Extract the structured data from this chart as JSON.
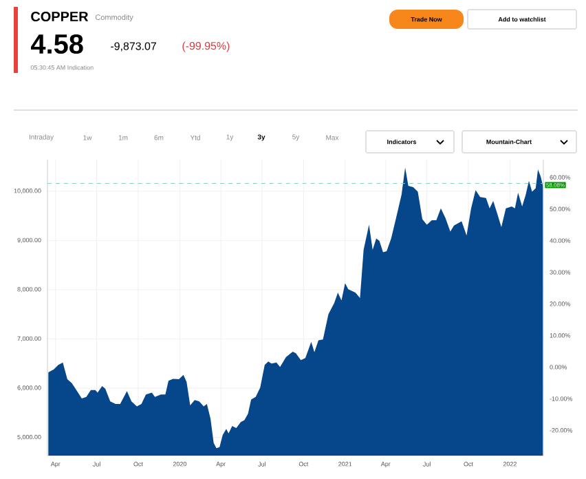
{
  "chart_data": {
    "type": "area",
    "title": "COPPER",
    "subtitle": "Commodity",
    "annotations": [
      "4.58",
      "-9,873.07",
      "(-99.95%)",
      "05:30:45 AM Indication",
      "Trade Now",
      "Add to watchlist",
      "Intraday",
      "1w",
      "1m",
      "6m",
      "Ytd",
      "1y",
      "3y",
      "5y",
      "Max",
      "Indicators",
      "Mountain-Chart"
    ],
    "x": [
      "2019-03-16",
      "2019-03-28",
      "2019-04-07",
      "2019-04-17",
      "2019-04-27",
      "2019-05-07",
      "2019-05-17",
      "2019-05-29",
      "2019-06-08",
      "2019-06-18",
      "2019-06-28",
      "2019-07-03",
      "2019-07-13",
      "2019-07-20",
      "2019-07-31",
      "2019-08-12",
      "2019-08-22",
      "2019-09-06",
      "2019-09-16",
      "2019-09-28",
      "2019-10-08",
      "2019-10-18",
      "2019-10-31",
      "2019-11-07",
      "2019-11-20",
      "2019-11-30",
      "2019-12-07",
      "2019-12-17",
      "2019-12-30",
      "2020-01-09",
      "2020-01-16",
      "2020-01-24",
      "2020-02-03",
      "2020-02-13",
      "2020-02-23",
      "2020-03-01",
      "2020-03-09",
      "2020-03-16",
      "2020-03-22",
      "2020-03-29",
      "2020-04-05",
      "2020-04-13",
      "2020-04-18",
      "2020-04-26",
      "2020-05-05",
      "2020-05-15",
      "2020-05-23",
      "2020-05-31",
      "2020-06-07",
      "2020-06-17",
      "2020-06-27",
      "2020-07-07",
      "2020-07-15",
      "2020-07-22",
      "2020-08-02",
      "2020-08-10",
      "2020-08-23",
      "2020-09-07",
      "2020-09-14",
      "2020-09-25",
      "2020-10-05",
      "2020-10-18",
      "2020-10-25",
      "2020-11-03",
      "2020-11-13",
      "2020-11-25",
      "2020-12-08",
      "2020-12-16",
      "2020-12-24",
      "2021-01-01",
      "2021-01-08",
      "2021-01-24",
      "2021-02-03",
      "2021-02-11",
      "2021-02-23",
      "2021-03-03",
      "2021-03-11",
      "2021-03-18",
      "2021-03-26",
      "2021-04-03",
      "2021-04-13",
      "2021-04-24",
      "2021-05-06",
      "2021-05-14",
      "2021-05-21",
      "2021-06-01",
      "2021-06-11",
      "2021-06-21",
      "2021-07-01",
      "2021-07-12",
      "2021-07-22",
      "2021-08-01",
      "2021-08-11",
      "2021-08-22",
      "2021-08-30",
      "2021-09-16",
      "2021-09-27",
      "2021-10-07",
      "2021-10-17",
      "2021-10-27",
      "2021-11-09",
      "2021-11-17",
      "2021-11-25",
      "2021-12-05",
      "2021-12-13",
      "2021-12-23",
      "2022-01-05",
      "2022-01-12",
      "2022-01-19",
      "2022-01-28",
      "2022-02-05",
      "2022-02-12",
      "2022-02-19",
      "2022-02-27",
      "2022-03-04",
      "2022-03-10",
      "2022-03-15"
    ],
    "series": [
      {
        "color": "#06468a",
        "values": [
          6320,
          6380,
          6470,
          6520,
          6180,
          6100,
          5960,
          5790,
          5820,
          5960,
          5960,
          5910,
          6040,
          5990,
          5730,
          5680,
          5680,
          5940,
          5730,
          5630,
          5680,
          5870,
          5910,
          5820,
          5870,
          5870,
          6150,
          6190,
          6180,
          6270,
          6130,
          5650,
          5760,
          5730,
          5630,
          5680,
          5380,
          4890,
          4780,
          4800,
          5050,
          5170,
          5080,
          5230,
          5190,
          5310,
          5350,
          5480,
          5770,
          5820,
          6010,
          6470,
          6540,
          6500,
          6520,
          6430,
          6630,
          6740,
          6710,
          6570,
          6610,
          6940,
          6730,
          6970,
          6990,
          7500,
          7730,
          7940,
          7780,
          8130,
          8010,
          7940,
          7830,
          8810,
          9320,
          8810,
          9040,
          8990,
          8760,
          8780,
          9040,
          9460,
          9930,
          10480,
          10110,
          10080,
          9990,
          9430,
          9320,
          9410,
          9410,
          9650,
          9460,
          9180,
          9300,
          9390,
          9100,
          9650,
          10020,
          9880,
          9860,
          9650,
          9800,
          9510,
          9270,
          9650,
          9690,
          9650,
          9970,
          9690,
          9930,
          10210,
          9990,
          10060,
          10440,
          10300,
          10110
        ]
      }
    ],
    "xlim": [
      "2019-03-14",
      "2022-03-16"
    ],
    "xticks": [
      {
        "value": "2019-04-01",
        "label": "Apr"
      },
      {
        "value": "2019-07-01",
        "label": "Jul"
      },
      {
        "value": "2019-10-01",
        "label": "Oct"
      },
      {
        "value": "2020-01-01",
        "label": "2020"
      },
      {
        "value": "2020-04-01",
        "label": "Apr"
      },
      {
        "value": "2020-07-01",
        "label": "Jul"
      },
      {
        "value": "2020-10-01",
        "label": "Oct"
      },
      {
        "value": "2021-01-01",
        "label": "2021"
      },
      {
        "value": "2021-04-01",
        "label": "Apr"
      },
      {
        "value": "2021-07-01",
        "label": "Jul"
      },
      {
        "value": "2021-10-01",
        "label": "Oct"
      },
      {
        "value": "2022-01-01",
        "label": "2022"
      }
    ],
    "ylim": [
      4630,
      10640
    ],
    "yticks": [
      {
        "value": 5000,
        "label": "5,000.00"
      },
      {
        "value": 6000,
        "label": "6,000.00"
      },
      {
        "value": 7000,
        "label": "7,000.00"
      },
      {
        "value": 8000,
        "label": "8,000.00"
      },
      {
        "value": 9000,
        "label": "9,000.00"
      },
      {
        "value": 10000,
        "label": "10,000.00"
      }
    ],
    "y2lim": [
      -28,
      65.6
    ],
    "y2ticks": [
      {
        "value": -20,
        "label": "-20.00%"
      },
      {
        "value": -10,
        "label": "-10.00%"
      },
      {
        "value": 0,
        "label": "0.00%"
      },
      {
        "value": 10,
        "label": "10.00%"
      },
      {
        "value": 20,
        "label": "20.00%"
      },
      {
        "value": 30,
        "label": "30.00%"
      },
      {
        "value": 40,
        "label": "40.00%"
      },
      {
        "value": 50,
        "label": "50.00%"
      },
      {
        "value": 60,
        "label": "60.00%"
      }
    ],
    "ref_lines": [
      {
        "axis": "y2",
        "value": 58.08,
        "label": "58.08%",
        "color": "#7fd3c0",
        "line_style": "dashed"
      }
    ],
    "grid": true
  }
}
